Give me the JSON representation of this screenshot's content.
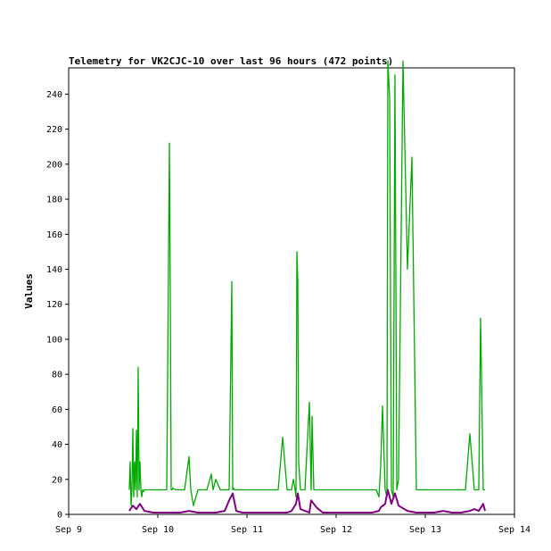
{
  "chart_data": {
    "type": "line",
    "title": "Telemetry for VK2CJC-10 over last 96 hours (472 points)",
    "xlabel": "",
    "ylabel": "Values",
    "x_ticks": [
      "Sep 9",
      "Sep 10",
      "Sep 11",
      "Sep 12",
      "Sep 13",
      "Sep 14"
    ],
    "y_ticks": [
      0,
      20,
      40,
      60,
      80,
      100,
      120,
      140,
      160,
      180,
      200,
      220,
      240
    ],
    "xlim": [
      0,
      5
    ],
    "ylim": [
      0,
      255
    ],
    "grid": false,
    "colors": {
      "green_series": "#00aa00",
      "purple_series": "#800080"
    },
    "series": [
      {
        "color": "#00aa00",
        "x": [
          0.68,
          0.69,
          0.7,
          0.71,
          0.72,
          0.73,
          0.74,
          0.75,
          0.76,
          0.77,
          0.78,
          0.79,
          0.8,
          0.81,
          0.82,
          0.83,
          0.84,
          0.85,
          0.87,
          0.9,
          0.93,
          0.96,
          1.0,
          1.05,
          1.1,
          1.13,
          1.14,
          1.15,
          1.16,
          1.17,
          1.2,
          1.25,
          1.3,
          1.35,
          1.37,
          1.4,
          1.45,
          1.55,
          1.6,
          1.62,
          1.65,
          1.7,
          1.75,
          1.8,
          1.83,
          1.84,
          1.85,
          1.86,
          1.9,
          1.95,
          2.0,
          2.05,
          2.1,
          2.2,
          2.25,
          2.3,
          2.35,
          2.4,
          2.45,
          2.5,
          2.52,
          2.54,
          2.55,
          2.56,
          2.57,
          2.58,
          2.6,
          2.62,
          2.65,
          2.7,
          2.72,
          2.73,
          2.75,
          2.78,
          2.8,
          2.85,
          2.9,
          2.95,
          3.0,
          3.1,
          3.2,
          3.3,
          3.4,
          3.45,
          3.48,
          3.5,
          3.52,
          3.55,
          3.57,
          3.58,
          3.6,
          3.62,
          3.64,
          3.66,
          3.68,
          3.7,
          3.75,
          3.8,
          3.85,
          3.9,
          3.95,
          4.0,
          4.05,
          4.1,
          4.15,
          4.2,
          4.25,
          4.3,
          4.35,
          4.4,
          4.45,
          4.5,
          4.55,
          4.58,
          4.6,
          4.62,
          4.65,
          4.67
        ],
        "values": [
          14,
          30,
          5,
          14,
          49,
          10,
          30,
          14,
          48,
          10,
          84,
          14,
          30,
          14,
          10,
          14,
          13,
          14,
          14,
          14,
          14,
          14,
          14,
          14,
          14,
          212,
          125,
          14,
          14,
          15,
          14,
          14,
          14,
          33,
          14,
          5,
          14,
          14,
          23,
          14,
          20,
          14,
          14,
          14,
          133,
          14,
          15,
          14,
          14,
          14,
          14,
          14,
          14,
          14,
          14,
          14,
          14,
          44,
          14,
          14,
          20,
          14,
          10,
          150,
          134,
          30,
          14,
          14,
          14,
          64,
          14,
          56,
          14,
          14,
          14,
          14,
          14,
          14,
          14,
          14,
          14,
          14,
          14,
          14,
          10,
          28,
          62,
          14,
          10,
          259,
          238,
          14,
          10,
          251,
          14,
          20,
          259,
          140,
          204,
          14,
          14,
          14,
          14,
          14,
          14,
          14,
          14,
          14,
          14,
          14,
          14,
          46,
          14,
          14,
          14,
          112,
          14,
          14
        ]
      },
      {
        "color": "#800080",
        "x": [
          0.68,
          0.72,
          0.76,
          0.8,
          0.85,
          0.95,
          1.05,
          1.15,
          1.25,
          1.35,
          1.45,
          1.55,
          1.65,
          1.75,
          1.8,
          1.84,
          1.88,
          1.95,
          2.05,
          2.15,
          2.25,
          2.35,
          2.45,
          2.5,
          2.55,
          2.57,
          2.6,
          2.7,
          2.72,
          2.78,
          2.85,
          2.95,
          3.1,
          3.25,
          3.4,
          3.48,
          3.5,
          3.55,
          3.58,
          3.62,
          3.66,
          3.7,
          3.8,
          3.9,
          4.0,
          4.1,
          4.2,
          4.3,
          4.4,
          4.5,
          4.55,
          4.6,
          4.65,
          4.67
        ],
        "values": [
          2,
          5,
          3,
          6,
          2,
          1,
          1,
          1,
          1,
          2,
          1,
          1,
          1,
          2,
          8,
          12,
          2,
          1,
          1,
          1,
          1,
          1,
          1,
          2,
          6,
          12,
          3,
          1,
          8,
          4,
          1,
          1,
          1,
          1,
          1,
          2,
          4,
          6,
          14,
          6,
          12,
          5,
          2,
          1,
          1,
          1,
          2,
          1,
          1,
          2,
          3,
          2,
          6,
          2
        ]
      }
    ]
  }
}
